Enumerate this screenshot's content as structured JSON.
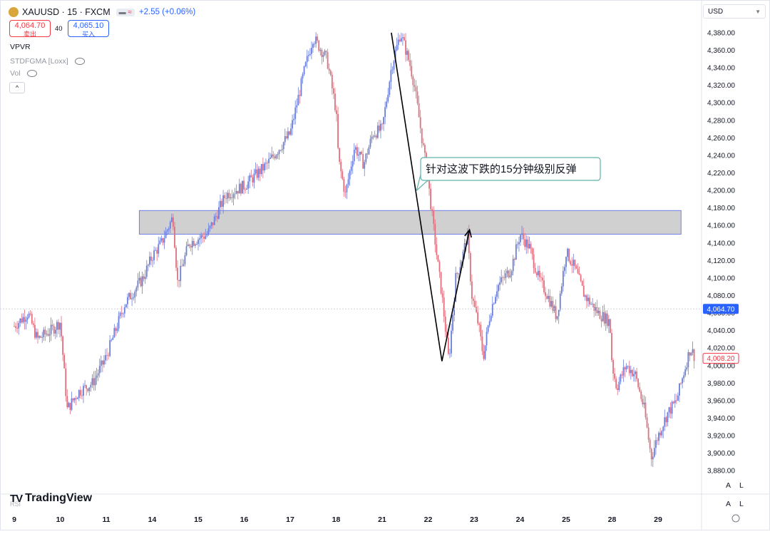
{
  "header": {
    "symbol": "XAUUSD · 15 · FXCM",
    "change": "+2.55 (+0.06%)",
    "pill": "≈"
  },
  "quote": {
    "sell_price": "4,064.70",
    "sell_label": "卖出",
    "spread": "40",
    "buy_price": "4,065.10",
    "buy_label": "买入"
  },
  "indicators": {
    "vpvr": "VPVR",
    "stdfgma": "STDFGMA [Loxx]",
    "vol": "Vol"
  },
  "currency": "USD",
  "axis_buttons": {
    "a": "A",
    "l": "L"
  },
  "watermark": "TradingView",
  "rsi_label": "RSI",
  "colors": {
    "up": "#6b7fd8",
    "down": "#e0707e",
    "zone_fill": "#c8c8c8",
    "zone_border": "#6f7fe6",
    "annotation_border": "#5fb3a8",
    "current_price": "#2962ff",
    "last_price": "#f23645"
  },
  "chart_data": {
    "type": "candlestick",
    "title": "XAUUSD · 15 · FXCM",
    "x_tick_labels": [
      "9",
      "10",
      "11",
      "14",
      "15",
      "16",
      "17",
      "18",
      "21",
      "22",
      "23",
      "24",
      "25",
      "28",
      "29"
    ],
    "y_ticks": [
      3880,
      3900,
      3920,
      3940,
      3960,
      3980,
      4000,
      4020,
      4040,
      4060,
      4080,
      4100,
      4120,
      4140,
      4160,
      4180,
      4200,
      4220,
      4240,
      4260,
      4280,
      4300,
      4320,
      4340,
      4360,
      4380
    ],
    "y_tick_labels": [
      "3,880.00",
      "3,900.00",
      "3,920.00",
      "3,940.00",
      "3,960.00",
      "3,980.00",
      "4,000.00",
      "4,020.00",
      "4,040.00",
      "4,060.00",
      "4,080.00",
      "4,100.00",
      "4,120.00",
      "4,140.00",
      "4,160.00",
      "4,180.00",
      "4,200.00",
      "4,220.00",
      "4,240.00",
      "4,260.00",
      "4,280.00",
      "4,300.00",
      "4,320.00",
      "4,340.00",
      "4,360.00",
      "4,380.00"
    ],
    "ylim": [
      3872,
      4395
    ],
    "session_count": 15,
    "price_path": [
      [
        0,
        4045
      ],
      [
        0.3,
        4060
      ],
      [
        0.5,
        4030
      ],
      [
        0.8,
        4040
      ],
      [
        1.0,
        4050
      ],
      [
        1.15,
        3950
      ],
      [
        1.4,
        3970
      ],
      [
        1.7,
        3980
      ],
      [
        2.0,
        4010
      ],
      [
        2.4,
        4070
      ],
      [
        2.8,
        4100
      ],
      [
        3.0,
        4125
      ],
      [
        3.2,
        4140
      ],
      [
        3.45,
        4170
      ],
      [
        3.55,
        4095
      ],
      [
        3.8,
        4140
      ],
      [
        4.2,
        4150
      ],
      [
        4.6,
        4195
      ],
      [
        5.0,
        4205
      ],
      [
        5.5,
        4230
      ],
      [
        6.0,
        4265
      ],
      [
        6.3,
        4335
      ],
      [
        6.5,
        4375
      ],
      [
        6.8,
        4350
      ],
      [
        7.0,
        4290
      ],
      [
        7.05,
        4235
      ],
      [
        7.2,
        4195
      ],
      [
        7.4,
        4250
      ],
      [
        7.6,
        4230
      ],
      [
        7.8,
        4265
      ],
      [
        8.0,
        4270
      ],
      [
        8.2,
        4340
      ],
      [
        8.4,
        4380
      ],
      [
        8.6,
        4345
      ],
      [
        8.7,
        4320
      ],
      [
        8.85,
        4265
      ],
      [
        9.0,
        4210
      ],
      [
        9.2,
        4120
      ],
      [
        9.3,
        4080
      ],
      [
        9.45,
        4005
      ],
      [
        9.6,
        4100
      ],
      [
        9.75,
        4125
      ],
      [
        9.85,
        4150
      ],
      [
        9.95,
        4080
      ],
      [
        10.1,
        4045
      ],
      [
        10.2,
        4010
      ],
      [
        10.35,
        4060
      ],
      [
        10.5,
        4090
      ],
      [
        10.8,
        4110
      ],
      [
        11.0,
        4150
      ],
      [
        11.2,
        4135
      ],
      [
        11.4,
        4100
      ],
      [
        11.6,
        4080
      ],
      [
        11.8,
        4055
      ],
      [
        12.0,
        4130
      ],
      [
        12.2,
        4110
      ],
      [
        12.4,
        4080
      ],
      [
        12.7,
        4060
      ],
      [
        12.95,
        4050
      ],
      [
        13.0,
        4000
      ],
      [
        13.1,
        3975
      ],
      [
        13.3,
        4000
      ],
      [
        13.5,
        3990
      ],
      [
        13.7,
        3950
      ],
      [
        13.85,
        3895
      ],
      [
        14.0,
        3920
      ],
      [
        14.2,
        3945
      ],
      [
        14.4,
        3960
      ],
      [
        14.6,
        4000
      ],
      [
        14.7,
        4020
      ],
      [
        14.8,
        4010
      ]
    ],
    "zone": {
      "low": 4150,
      "high": 4177,
      "label": ""
    },
    "drawn_lines": [
      {
        "points": [
          [
            8.2,
            4380
          ],
          [
            9.3,
            4005
          ],
          [
            9.9,
            4155
          ]
        ],
        "arrow_end": true
      }
    ],
    "annotation": {
      "text": "针对这波下跌的15分钟级别反弹",
      "anchor_x": 8.75,
      "anchor_y": 4200
    },
    "current_price": "4,064.70",
    "current_price_value": 4064.7,
    "last_price": "4,008.20",
    "last_price_value": 4008.2
  }
}
